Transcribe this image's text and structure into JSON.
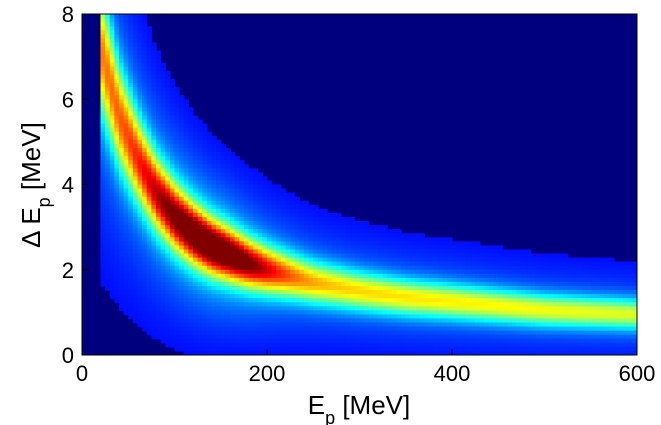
{
  "chart_data": {
    "type": "heatmap",
    "title": "",
    "xlabel": {
      "main": "E",
      "sub": "p",
      "unit": " [MeV]"
    },
    "ylabel": {
      "prefix": "Δ E",
      "sub": "p",
      "unit": " [MeV]"
    },
    "xlim": [
      0,
      600
    ],
    "ylim": [
      0,
      8
    ],
    "xticks": [
      "0",
      "200",
      "400",
      "600"
    ],
    "yticks": [
      "0",
      "2",
      "4",
      "6",
      "8"
    ],
    "xtick_values": [
      0,
      200,
      400,
      600
    ],
    "ytick_values": [
      0,
      2,
      4,
      6,
      8
    ],
    "colormap": "jet",
    "background_color": "#00007f",
    "grid": false,
    "legend": "none",
    "x_start": 20,
    "x_end": 600,
    "ridge": {
      "description": "Intensity ridge: Delta E_p as a function of E_p",
      "points": [
        {
          "x": 20,
          "y": 7.2
        },
        {
          "x": 40,
          "y": 5.6
        },
        {
          "x": 60,
          "y": 4.6
        },
        {
          "x": 80,
          "y": 3.8
        },
        {
          "x": 100,
          "y": 3.25
        },
        {
          "x": 120,
          "y": 2.85
        },
        {
          "x": 140,
          "y": 2.55
        },
        {
          "x": 160,
          "y": 2.35
        },
        {
          "x": 180,
          "y": 2.15
        },
        {
          "x": 200,
          "y": 2.0
        },
        {
          "x": 250,
          "y": 1.7
        },
        {
          "x": 300,
          "y": 1.5
        },
        {
          "x": 350,
          "y": 1.35
        },
        {
          "x": 400,
          "y": 1.25
        },
        {
          "x": 450,
          "y": 1.15
        },
        {
          "x": 500,
          "y": 1.05
        },
        {
          "x": 550,
          "y": 1.0
        },
        {
          "x": 600,
          "y": 0.95
        }
      ],
      "peak": {
        "x": 140,
        "y": 2.6
      }
    }
  }
}
